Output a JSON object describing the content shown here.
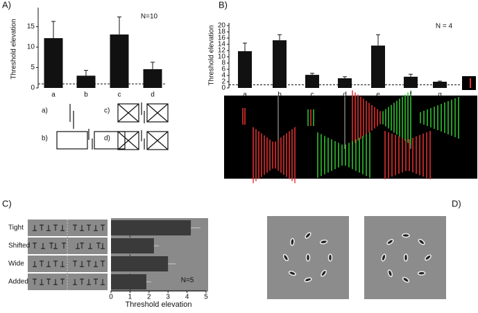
{
  "chart_data": [
    {
      "type": "bar",
      "panel_label": "A)",
      "ylabel": "Threshold elevation",
      "annotation": "N=10",
      "categories": [
        "a",
        "b",
        "c",
        "d"
      ],
      "values": [
        12.2,
        3,
        13.1,
        4.6
      ],
      "errors": [
        4.1,
        1.3,
        4.3,
        1.7
      ],
      "color": "#111111",
      "ylim": [
        0,
        19
      ],
      "yticks": [
        0,
        5,
        10,
        15
      ],
      "reference_line": 1,
      "schematic_labels": [
        "a)",
        "b)",
        "c)",
        "d)"
      ]
    },
    {
      "type": "bar",
      "panel_label": "B)",
      "ylabel": "Threshold elevation",
      "annotation": "N = 4",
      "categories": [
        "a",
        "b",
        "c",
        "d",
        "e",
        "f",
        "g"
      ],
      "values": [
        11.8,
        15.3,
        4.2,
        3.1,
        13.6,
        3.6,
        2
      ],
      "errors": [
        2.6,
        1.8,
        0.5,
        0.5,
        3.5,
        0.8,
        0.2
      ],
      "color": "#111111",
      "ylim": [
        0,
        20
      ],
      "yticks": [
        0,
        2,
        4,
        6,
        8,
        10,
        12,
        14,
        16,
        18,
        20
      ],
      "reference_line": 1
    },
    {
      "type": "bar",
      "orientation": "horizontal",
      "panel_label": "C)",
      "xlabel": "Threshold elevation",
      "annotation": "N=5",
      "categories": [
        "Tight",
        "Shifted",
        "Wide",
        "Added"
      ],
      "values": [
        4.2,
        2.26,
        3,
        1.86
      ],
      "errors": [
        0.5,
        0.25,
        0.4,
        0.25
      ],
      "color": "#3a3a3a",
      "xlim": [
        0,
        5
      ],
      "xticks": [
        0,
        1,
        2,
        3,
        4,
        5
      ],
      "reference_line": 1
    }
  ],
  "panel_d": {
    "label": "D)"
  }
}
